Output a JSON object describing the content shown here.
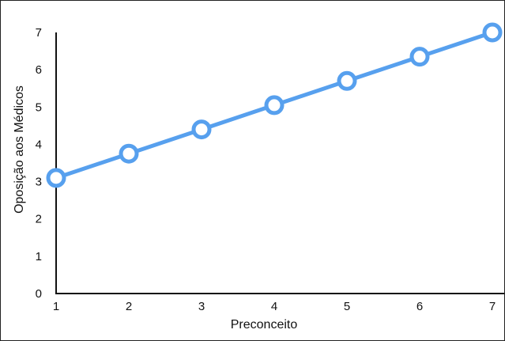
{
  "chart_data": {
    "type": "line",
    "title": "",
    "xlabel": "Preconceito",
    "ylabel": "Oposição aos Médicos",
    "x": [
      1,
      2,
      3,
      4,
      5,
      6,
      7
    ],
    "series": [
      {
        "values": [
          3.1,
          3.75,
          4.4,
          5.05,
          5.7,
          6.35,
          7.0
        ]
      }
    ],
    "xlim": [
      1,
      7
    ],
    "ylim": [
      0,
      7
    ],
    "x_ticks": [
      "1",
      "2",
      "3",
      "4",
      "5",
      "6",
      "7"
    ],
    "y_ticks": [
      "0",
      "1",
      "2",
      "3",
      "4",
      "5",
      "6",
      "7"
    ],
    "grid": false,
    "legend": "none",
    "colors": {
      "line": "#57a0ee",
      "marker_fill": "#ffffff",
      "axis": "#111111"
    }
  }
}
